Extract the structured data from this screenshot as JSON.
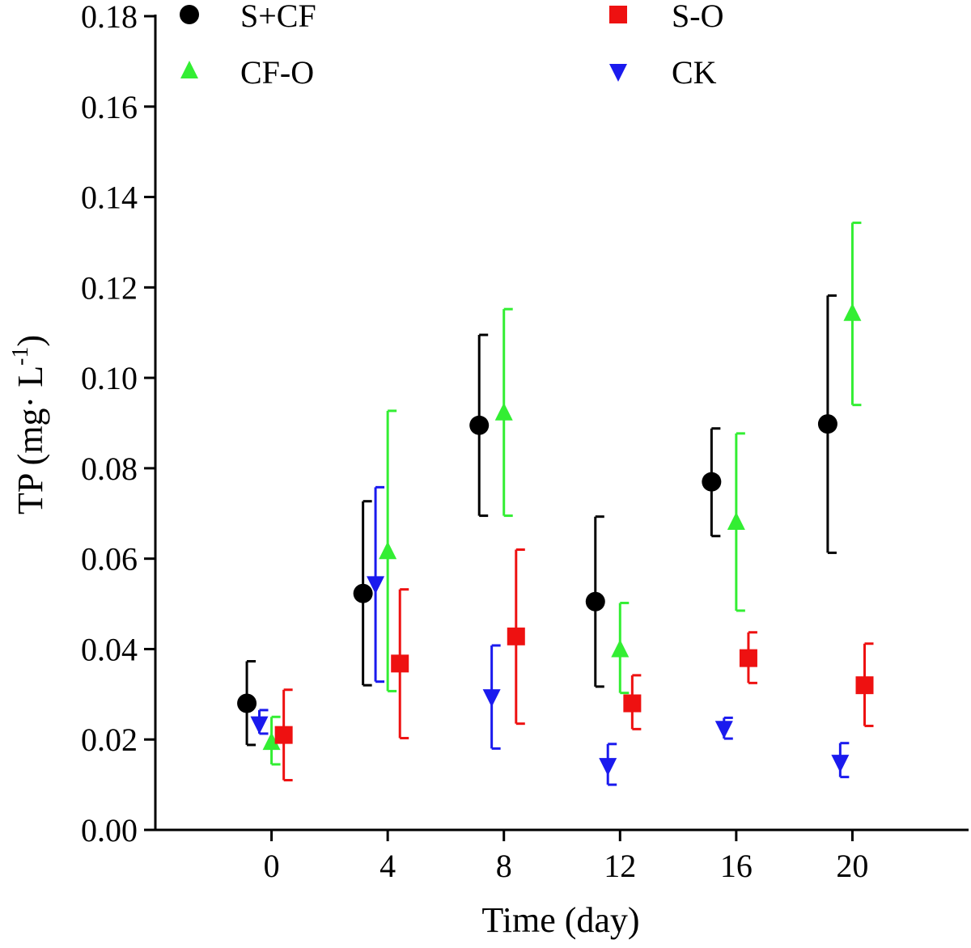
{
  "chart_data": {
    "type": "scatter",
    "title": "",
    "xlabel": "Time (day)",
    "ylabel": {
      "main": "TP (mg· L",
      "sup": "-1",
      "close": ")"
    },
    "x_ticks": [
      "0",
      "4",
      "8",
      "12",
      "16",
      "20"
    ],
    "y_ticks": [
      "0.00",
      "0.02",
      "0.04",
      "0.06",
      "0.08",
      "0.10",
      "0.12",
      "0.14",
      "0.16",
      "0.18"
    ],
    "ylim": [
      0,
      0.18
    ],
    "grid": false,
    "legend_position": "top",
    "series": [
      {
        "name": "S+CF",
        "marker": "circle",
        "color": "#000000",
        "x": [
          0,
          4,
          8,
          12,
          16,
          20
        ],
        "values": [
          0.028,
          0.0523,
          0.0895,
          0.0505,
          0.077,
          0.0898
        ],
        "err_low": [
          0.0188,
          0.032,
          0.0695,
          0.0317,
          0.065,
          0.0613
        ],
        "err_high": [
          0.0373,
          0.0727,
          0.1095,
          0.0693,
          0.0888,
          0.1182
        ]
      },
      {
        "name": "CF-O",
        "marker": "triangle-up",
        "color": "#33ee33",
        "x": [
          0,
          4,
          8,
          12,
          16,
          20
        ],
        "values": [
          0.0193,
          0.0615,
          0.0922,
          0.0398,
          0.068,
          0.1142
        ],
        "err_low": [
          0.0145,
          0.0307,
          0.0695,
          0.0303,
          0.0485,
          0.094
        ],
        "err_high": [
          0.025,
          0.0927,
          0.1152,
          0.0502,
          0.0877,
          0.1343
        ]
      },
      {
        "name": "CK",
        "marker": "triangle-down",
        "color": "#1a1aee",
        "x": [
          0,
          4,
          8,
          12,
          16,
          20
        ],
        "values": [
          0.0235,
          0.0545,
          0.0295,
          0.0143,
          0.0225,
          0.015
        ],
        "err_low": [
          0.0213,
          0.0328,
          0.018,
          0.01,
          0.0202,
          0.0117
        ],
        "err_high": [
          0.0265,
          0.0758,
          0.0408,
          0.019,
          0.0248,
          0.0192
        ]
      },
      {
        "name": "S-O",
        "marker": "square",
        "color": "#ee1111",
        "x": [
          0,
          4,
          8,
          12,
          16,
          20
        ],
        "values": [
          0.021,
          0.0368,
          0.0428,
          0.028,
          0.038,
          0.032
        ],
        "err_low": [
          0.011,
          0.0203,
          0.0235,
          0.0223,
          0.0325,
          0.023
        ],
        "err_high": [
          0.031,
          0.0532,
          0.062,
          0.0342,
          0.0437,
          0.0412
        ]
      }
    ]
  }
}
